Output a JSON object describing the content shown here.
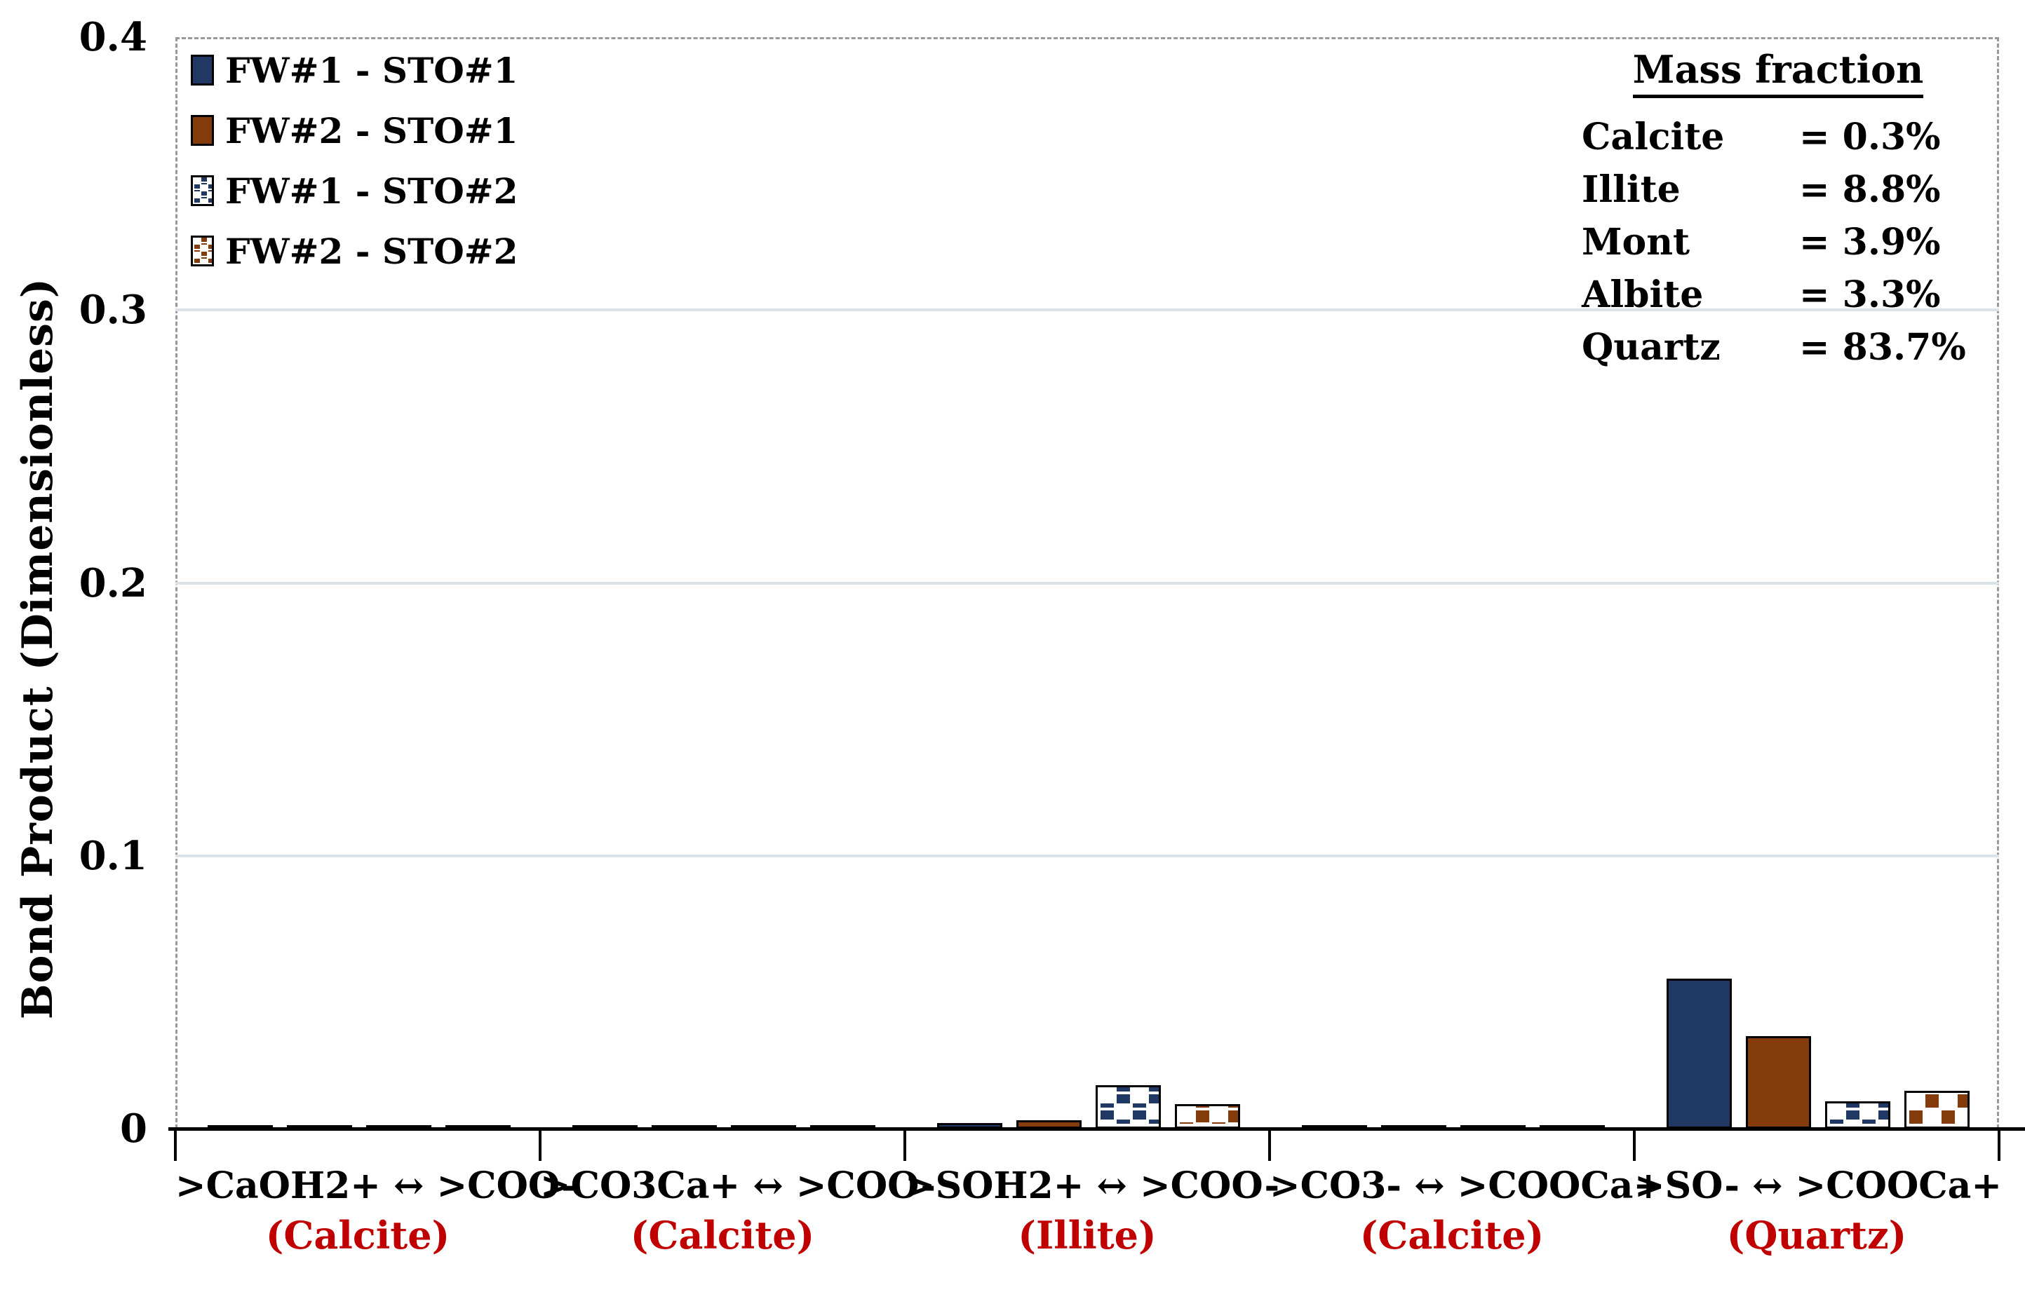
{
  "colors": {
    "navy": "#1f3864",
    "brown": "#843c0c",
    "red_label": "#c00000",
    "gridline": "#dbe2ea",
    "dashed_border": "#999999",
    "axis": "#000000"
  },
  "y_axis": {
    "title": "Bond Product (Dimensionless)",
    "ticks": [
      {
        "label": "0.4",
        "value": 0.4
      },
      {
        "label": "0.3",
        "value": 0.3
      },
      {
        "label": "0.2",
        "value": 0.2
      },
      {
        "label": "0.1",
        "value": 0.1
      },
      {
        "label": "0",
        "value": 0
      }
    ]
  },
  "legend": {
    "items": [
      {
        "label": "FW#1 - STO#1",
        "swatch": "solid-navy"
      },
      {
        "label": "FW#2 - STO#1",
        "swatch": "solid-brown"
      },
      {
        "label": "FW#1 - STO#2",
        "swatch": "pat-blue"
      },
      {
        "label": "FW#2 - STO#2",
        "swatch": "pat-brown"
      }
    ]
  },
  "mass_fraction": {
    "title": "Mass fraction",
    "rows": [
      {
        "mineral": "Calcite",
        "value": "= 0.3%"
      },
      {
        "mineral": "Illite",
        "value": "= 8.8%"
      },
      {
        "mineral": "Mont",
        "value": "= 3.9%"
      },
      {
        "mineral": "Albite",
        "value": "= 3.3%"
      },
      {
        "mineral": "Quartz",
        "value": "= 83.7%"
      }
    ]
  },
  "chart_data": {
    "type": "bar",
    "title": "",
    "xlabel": "",
    "ylabel": "Bond Product (Dimensionless)",
    "ylim": [
      0,
      0.4
    ],
    "yticks": [
      0,
      0.1,
      0.2,
      0.3,
      0.4
    ],
    "grid": "horizontal",
    "legend_position": "top-left",
    "categories": [
      ">CaOH2+ ↔ >COO-",
      ">CO3Ca+  ↔ >COO-",
      ">SOH2+ ↔ >COO-",
      ">CO3- ↔ >COOCa+",
      ">SO- ↔ >COOCa+"
    ],
    "category_minerals": [
      "(Calcite)",
      "(Calcite)",
      "(Illite)",
      "(Calcite)",
      "(Quartz)"
    ],
    "series": [
      {
        "name": "FW#1 - STO#1",
        "style": "solid-navy",
        "color": "#1f3864",
        "values": [
          0.0005,
          0.0005,
          0.002,
          0.0005,
          0.055
        ]
      },
      {
        "name": "FW#2 - STO#1",
        "style": "solid-brown",
        "color": "#843c0c",
        "values": [
          0.0005,
          0.0005,
          0.003,
          0.0005,
          0.034
        ]
      },
      {
        "name": "FW#1 - STO#2",
        "style": "pat-blue",
        "color": "#1f3864",
        "values": [
          0.0005,
          0.0005,
          0.016,
          0.0005,
          0.01
        ]
      },
      {
        "name": "FW#2 - STO#2",
        "style": "pat-brown",
        "color": "#843c0c",
        "values": [
          0.0005,
          0.0005,
          0.009,
          0.0005,
          0.014
        ]
      }
    ]
  }
}
